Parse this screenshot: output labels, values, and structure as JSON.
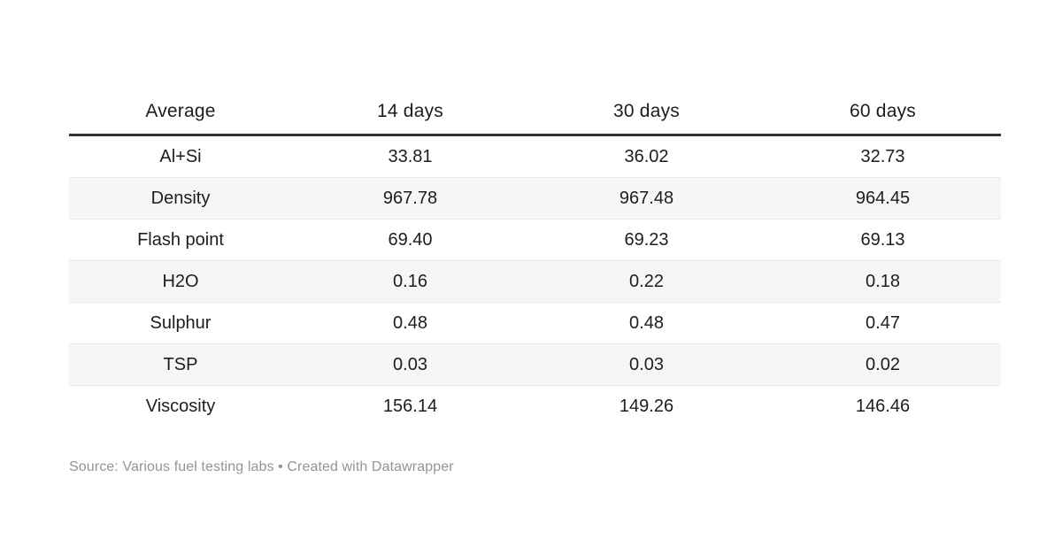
{
  "chart_data": {
    "type": "table",
    "columns": [
      "Average",
      "14 days",
      "30 days",
      "60 days"
    ],
    "rows": [
      [
        "Al+Si",
        "33.81",
        "36.02",
        "32.73"
      ],
      [
        "Density",
        "967.78",
        "967.48",
        "964.45"
      ],
      [
        "Flash point",
        "69.40",
        "69.23",
        "69.13"
      ],
      [
        "H2O",
        "0.16",
        "0.22",
        "0.18"
      ],
      [
        "Sulphur",
        "0.48",
        "0.48",
        "0.47"
      ],
      [
        "TSP",
        "0.03",
        "0.03",
        "0.02"
      ],
      [
        "Viscosity",
        "156.14",
        "149.26",
        "146.46"
      ]
    ],
    "title": "",
    "layout_hints": {
      "striped_rows": true,
      "row_stripe_pattern": "even-data-rows-shaded",
      "alignment": "center",
      "header_rule": "thick-dark"
    }
  },
  "footer": {
    "text": "Source: Various fuel testing labs • Created with Datawrapper"
  },
  "colors": {
    "bg": "#ffffff",
    "text": "#1d1d1d",
    "rule": "#333333",
    "divider": "#e9e9e9",
    "stripe": "#f6f6f6",
    "footer": "#949494"
  }
}
